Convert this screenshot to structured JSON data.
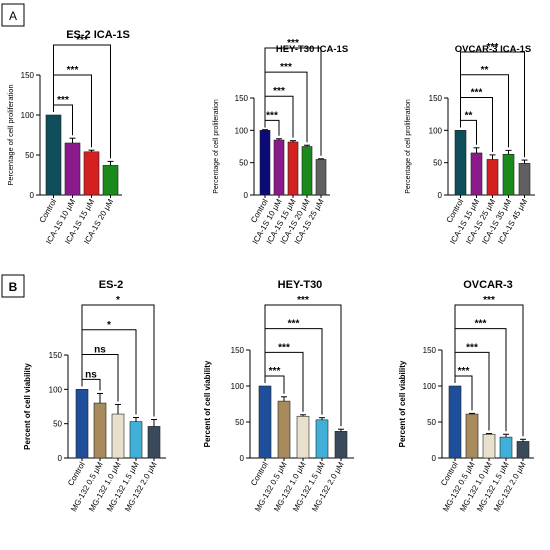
{
  "panels": [
    {
      "label": "A"
    },
    {
      "label": "B"
    }
  ],
  "colors": {
    "navy": "#0a0a78",
    "teal": "#0d4e5a",
    "purple": "#8b1a8b",
    "red": "#d42020",
    "green": "#1a8a1a",
    "gray": "#606060",
    "blue": "#1f4f9c",
    "tan": "#a88a5c",
    "beige": "#e8e0cc",
    "lightblue": "#40b0d8",
    "slate": "#3a4a5a"
  },
  "chart_data": [
    {
      "type": "bar",
      "title": "ES-2 ICA-1S",
      "ylabel": "Percentage of cell proliferation",
      "ylim": [
        0,
        150
      ],
      "yticks": [
        0,
        50,
        100,
        150
      ],
      "categories": [
        "Control",
        "ICA-1S 10 μM",
        "ICA-1S 15 μM",
        "ICA-1S 20 μM"
      ],
      "values": [
        100,
        65,
        54,
        37
      ],
      "errors": [
        0,
        6,
        2,
        5
      ],
      "colors": [
        "#0d4e5a",
        "#8b1a8b",
        "#d42020",
        "#1a8a1a"
      ],
      "significance": [
        "***",
        "***",
        "***"
      ]
    },
    {
      "type": "bar",
      "title": "HEY-T30 ICA-1S",
      "ylabel": "Percentage of cell proliferation",
      "ylim": [
        0,
        150
      ],
      "yticks": [
        0,
        50,
        100,
        150
      ],
      "categories": [
        "Control",
        "ICA-1S 10 μM",
        "ICA-1S 15 μM",
        "ICA-1S 20 μM",
        "ICA-1S 25 μM"
      ],
      "values": [
        100,
        85,
        82,
        75,
        55
      ],
      "errors": [
        1,
        2,
        2,
        2,
        1
      ],
      "colors": [
        "#0a0a78",
        "#8b1a8b",
        "#d42020",
        "#1a8a1a",
        "#606060"
      ],
      "significance": [
        "***",
        "***",
        "***",
        "***"
      ]
    },
    {
      "type": "bar",
      "title": "OVCAR-3 ICA-1S",
      "ylabel": "Percentage of cell proliferation",
      "ylim": [
        0,
        150
      ],
      "yticks": [
        0,
        50,
        100,
        150
      ],
      "categories": [
        "Control",
        "ICA-1S 15 μM",
        "ICA-1S 25 μM",
        "ICA-1S 35 μM",
        "ICA-1S 45 μM"
      ],
      "values": [
        100,
        65,
        55,
        63,
        49
      ],
      "errors": [
        0,
        8,
        7,
        6,
        5
      ],
      "colors": [
        "#0d4e5a",
        "#8b1a8b",
        "#d42020",
        "#1a8a1a",
        "#606060"
      ],
      "significance": [
        "**",
        "***",
        "**",
        "***"
      ]
    },
    {
      "type": "bar",
      "title": "ES-2",
      "ylabel": "Percent of cell viability",
      "ylim": [
        0,
        150
      ],
      "yticks": [
        0,
        50,
        100,
        150
      ],
      "categories": [
        "Control",
        "MG-132 0.5 μM",
        "MG-132 1.0 μM",
        "MG-132 1.5 μM",
        "MG-132 2.0 μM"
      ],
      "values": [
        100,
        80,
        64,
        53,
        46
      ],
      "errors": [
        0,
        14,
        14,
        6,
        10
      ],
      "colors": [
        "#1f4f9c",
        "#a88a5c",
        "#e8e0cc",
        "#40b0d8",
        "#3a4a5a"
      ],
      "significance": [
        "ns",
        "ns",
        "*",
        "*"
      ]
    },
    {
      "type": "bar",
      "title": "HEY-T30",
      "ylabel": "Percent of cell viability",
      "ylim": [
        0,
        150
      ],
      "yticks": [
        0,
        50,
        100,
        150
      ],
      "categories": [
        "Control",
        "MG-132 0.5 μM",
        "MG-132 1.0 μM",
        "MG-132 1.5 μM",
        "MG-132 2.0 μM"
      ],
      "values": [
        100,
        79,
        58,
        53,
        37
      ],
      "errors": [
        0,
        6,
        2,
        3,
        3
      ],
      "colors": [
        "#1f4f9c",
        "#a88a5c",
        "#e8e0cc",
        "#40b0d8",
        "#3a4a5a"
      ],
      "significance": [
        "***",
        "***",
        "***",
        "***"
      ]
    },
    {
      "type": "bar",
      "title": "OVCAR-3",
      "ylabel": "Percent of cell viability",
      "ylim": [
        0,
        150
      ],
      "yticks": [
        0,
        50,
        100,
        150
      ],
      "categories": [
        "Control",
        "MG-132 0.5 μM",
        "MG-132 1.0 μM",
        "MG-132 1.5 μM",
        "MG-132 2.0 μM"
      ],
      "values": [
        100,
        61,
        33,
        29,
        23
      ],
      "errors": [
        0,
        1,
        1,
        4,
        3
      ],
      "colors": [
        "#1f4f9c",
        "#a88a5c",
        "#e8e0cc",
        "#40b0d8",
        "#3a4a5a"
      ],
      "significance": [
        "***",
        "***",
        "***",
        "***"
      ]
    }
  ]
}
